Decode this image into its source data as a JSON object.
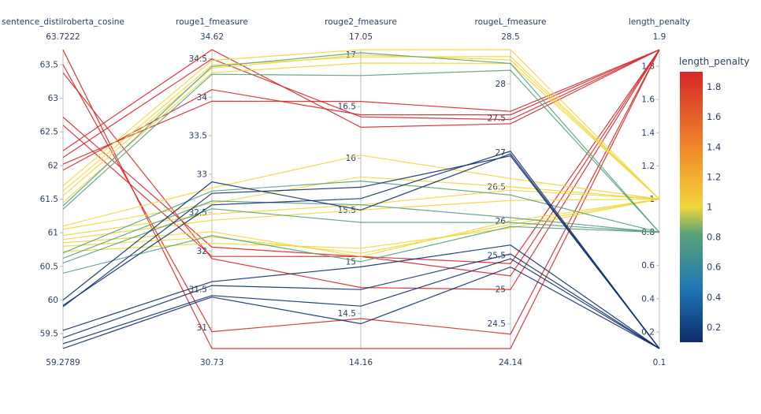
{
  "chart_data": {
    "type": "parallel_coordinates",
    "title": "",
    "dimensions": [
      {
        "label": "sentence_distilroberta_cosine",
        "range": [
          59.2789,
          63.7222
        ],
        "range_text": [
          "59.2789",
          "63.7222"
        ],
        "ticks": [
          59.5,
          60,
          60.5,
          61,
          61.5,
          62,
          62.5,
          63,
          63.5
        ],
        "tick_labels": [
          "59.5",
          "60",
          "60.5",
          "61",
          "61.5",
          "62",
          "62.5",
          "63",
          "63.5"
        ]
      },
      {
        "label": "rouge1_fmeasure",
        "range": [
          30.73,
          34.62
        ],
        "range_text": [
          "30.73",
          "34.62"
        ],
        "ticks": [
          31,
          31.5,
          32,
          32.5,
          33,
          33.5,
          34,
          34.5
        ],
        "tick_labels": [
          "31",
          "31.5",
          "32",
          "32.5",
          "33",
          "33.5",
          "34",
          "34.5"
        ]
      },
      {
        "label": "rouge2_fmeasure",
        "range": [
          14.16,
          17.05
        ],
        "range_text": [
          "14.16",
          "17.05"
        ],
        "ticks": [
          14.5,
          15,
          15.5,
          16,
          16.5,
          17
        ],
        "tick_labels": [
          "14.5",
          "15",
          "15.5",
          "16",
          "16.5",
          "17"
        ]
      },
      {
        "label": "rougeL_fmeasure",
        "range": [
          24.14,
          28.5
        ],
        "range_text": [
          "24.14",
          "28.5"
        ],
        "ticks": [
          24.5,
          25,
          25.5,
          26,
          26.5,
          27,
          27.5,
          28
        ],
        "tick_labels": [
          "24.5",
          "25",
          "25.5",
          "26",
          "26.5",
          "27",
          "27.5",
          "28"
        ]
      },
      {
        "label": "length_penalty",
        "range": [
          0.1,
          1.9
        ],
        "range_text": [
          "0.1",
          "1.9"
        ],
        "ticks": [
          0.2,
          0.4,
          0.6,
          0.8,
          1,
          1.2,
          1.4,
          1.6,
          1.8
        ],
        "tick_labels": [
          "0.2",
          "0.4",
          "0.6",
          "0.8",
          "1",
          "1.2",
          "1.4",
          "1.6",
          "1.8"
        ]
      }
    ],
    "lines": [
      [
        63.72,
        30.73,
        14.16,
        24.14,
        1.9
      ],
      [
        63.5,
        30.95,
        14.45,
        24.35,
        1.9
      ],
      [
        63.38,
        31.9,
        14.75,
        25.0,
        1.9
      ],
      [
        62.72,
        32.05,
        15.05,
        25.2,
        1.9
      ],
      [
        62.6,
        31.93,
        15.05,
        25.38,
        1.9
      ],
      [
        62.22,
        34.62,
        16.3,
        27.42,
        1.9
      ],
      [
        62.12,
        34.5,
        16.4,
        27.48,
        1.9
      ],
      [
        62.02,
        33.95,
        16.55,
        27.6,
        1.9
      ],
      [
        61.93,
        34.1,
        16.42,
        27.55,
        1.9
      ],
      [
        61.7,
        34.48,
        17.05,
        28.5,
        1.0
      ],
      [
        61.62,
        34.42,
        16.98,
        28.4,
        1.0
      ],
      [
        61.55,
        34.38,
        17.0,
        28.35,
        1.0
      ],
      [
        61.45,
        34.32,
        16.92,
        28.3,
        1.0
      ],
      [
        61.1,
        32.82,
        16.03,
        26.62,
        1.0
      ],
      [
        61.05,
        32.62,
        15.82,
        26.5,
        1.0
      ],
      [
        60.96,
        32.48,
        15.55,
        26.45,
        1.0
      ],
      [
        60.9,
        32.4,
        15.5,
        26.3,
        1.0
      ],
      [
        60.85,
        32.25,
        15.05,
        26.0,
        1.0
      ],
      [
        60.8,
        32.18,
        15.08,
        25.95,
        1.0
      ],
      [
        60.72,
        32.1,
        15.13,
        25.9,
        1.0
      ],
      [
        61.4,
        34.4,
        17.02,
        28.3,
        0.8
      ],
      [
        61.35,
        34.3,
        16.8,
        28.2,
        0.8
      ],
      [
        60.7,
        32.78,
        15.78,
        26.38,
        0.8
      ],
      [
        60.62,
        32.65,
        15.55,
        26.05,
        0.8
      ],
      [
        60.55,
        32.55,
        15.38,
        25.98,
        0.8
      ],
      [
        60.4,
        32.2,
        15.0,
        25.92,
        0.8
      ],
      [
        60.0,
        32.9,
        15.5,
        26.98,
        0.1
      ],
      [
        59.92,
        32.6,
        15.61,
        27.02,
        0.1
      ],
      [
        59.9,
        32.75,
        15.72,
        26.95,
        0.1
      ],
      [
        59.55,
        31.6,
        14.95,
        25.65,
        0.1
      ],
      [
        59.44,
        31.55,
        14.73,
        25.52,
        0.1
      ],
      [
        59.35,
        31.42,
        14.57,
        25.45,
        0.1
      ],
      [
        59.28,
        31.4,
        14.4,
        25.33,
        0.1
      ]
    ],
    "color_dimension": "length_penalty",
    "colorbar": {
      "title": "length_penalty",
      "range": [
        0.1,
        1.9
      ],
      "ticks": [
        0.2,
        0.4,
        0.6,
        0.8,
        1,
        1.2,
        1.4,
        1.6,
        1.8
      ],
      "tick_labels": [
        "0.2",
        "0.4",
        "0.6",
        "0.8",
        "1",
        "1.2",
        "1.4",
        "1.6",
        "1.8"
      ],
      "colorscale": [
        [
          0.0,
          "#0d2c6b"
        ],
        [
          0.2,
          "#1f77b4"
        ],
        [
          0.4,
          "#5aa37a"
        ],
        [
          0.5,
          "#f2d63a"
        ],
        [
          0.7,
          "#f28e2b"
        ],
        [
          1.0,
          "#d62728"
        ]
      ]
    }
  }
}
